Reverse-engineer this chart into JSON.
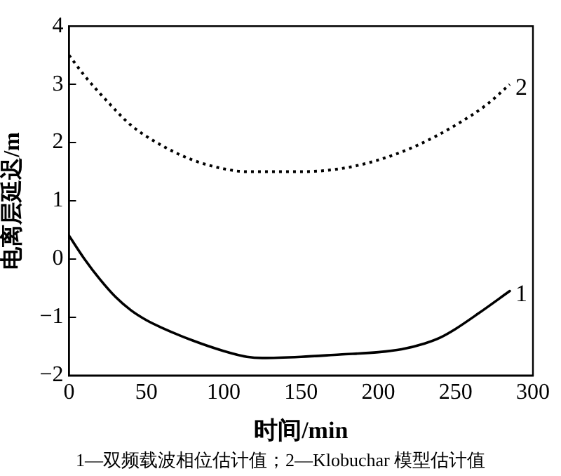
{
  "chart_data": {
    "type": "line",
    "xlabel": "时间/min",
    "ylabel": "电离层延迟/m",
    "xlim": [
      0,
      300
    ],
    "xticks": [
      0,
      50,
      100,
      150,
      200,
      250,
      300
    ],
    "ylim": [
      -2,
      4
    ],
    "yticks": [
      -2,
      -1,
      0,
      1,
      2,
      3,
      4
    ],
    "grid": false,
    "legend": false,
    "marker": "none",
    "series": [
      {
        "name": "1",
        "color": "#000000",
        "line_style": "solid",
        "x": [
          0,
          10,
          20,
          30,
          40,
          50,
          60,
          80,
          100,
          115,
          125,
          150,
          175,
          200,
          215,
          230,
          240,
          250,
          265,
          285
        ],
        "values": [
          0.4,
          0.0,
          -0.35,
          -0.65,
          -0.88,
          -1.05,
          -1.18,
          -1.4,
          -1.58,
          -1.68,
          -1.7,
          -1.68,
          -1.64,
          -1.6,
          -1.55,
          -1.45,
          -1.35,
          -1.2,
          -0.93,
          -0.55
        ]
      },
      {
        "name": "2",
        "color": "#000000",
        "line_style": "dotted",
        "x": [
          0,
          10,
          25,
          40,
          60,
          80,
          100,
          115,
          150,
          175,
          200,
          225,
          250,
          270,
          285
        ],
        "values": [
          3.5,
          3.15,
          2.7,
          2.3,
          1.95,
          1.7,
          1.55,
          1.5,
          1.5,
          1.55,
          1.7,
          1.95,
          2.3,
          2.65,
          3.0
        ]
      }
    ],
    "annotations": [
      "1—双频载波相位估计值；2—Klobuchar 模型估计值"
    ]
  }
}
